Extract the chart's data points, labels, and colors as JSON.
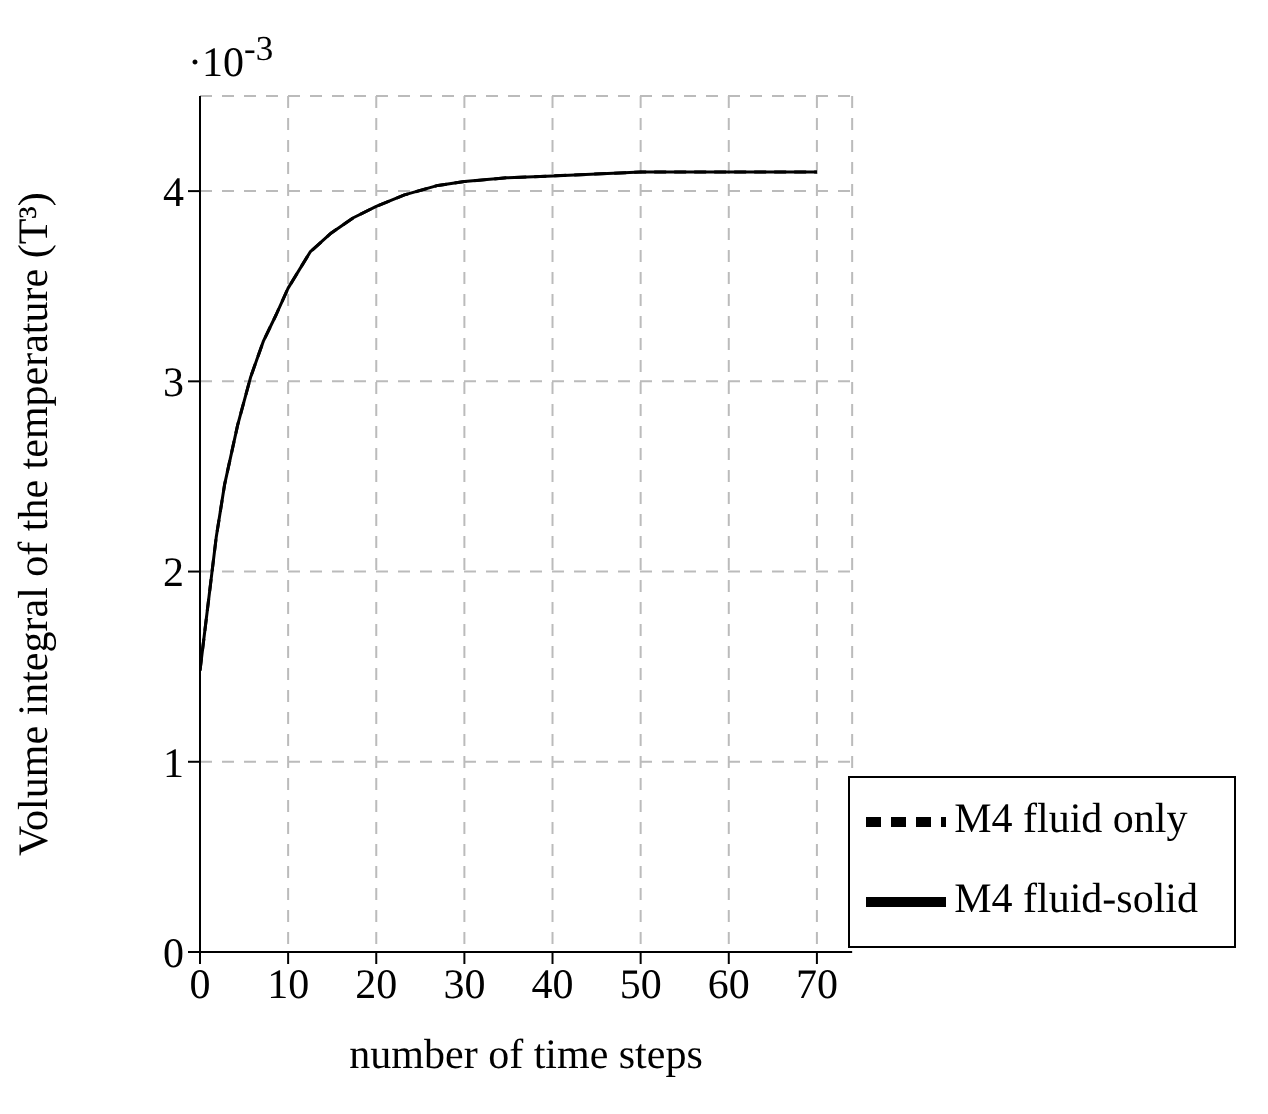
{
  "chart_data": {
    "type": "line",
    "xlabel": "number of time steps",
    "ylabel": "Volume integral of the temperature (T³)",
    "annotations": [
      "·10$^{-3}$"
    ],
    "x": [
      0,
      1.84,
      2.8,
      4.27,
      5.73,
      7.18,
      8.64,
      10,
      12.5,
      14.9,
      17.4,
      20,
      23.2,
      27,
      30,
      34.8,
      40,
      50,
      60,
      70
    ],
    "series": [
      {
        "name": "M4 fluid only",
        "color": "#000000",
        "line_style": "dashed",
        "values": [
          1.48,
          2.18,
          2.46,
          2.77,
          3.02,
          3.21,
          3.35,
          3.49,
          3.68,
          3.78,
          3.86,
          3.92,
          3.98,
          4.03,
          4.05,
          4.07,
          4.08,
          4.1,
          4.1,
          4.1
        ]
      },
      {
        "name": "M4 fluid-solid",
        "color": "#000000",
        "line_style": "solid",
        "values": [
          1.48,
          2.18,
          2.46,
          2.77,
          3.02,
          3.21,
          3.35,
          3.49,
          3.68,
          3.78,
          3.86,
          3.92,
          3.98,
          4.03,
          4.05,
          4.07,
          4.08,
          4.1,
          4.1,
          4.1
        ]
      }
    ],
    "xlim": [
      0,
      74
    ],
    "xticks": [
      0,
      10,
      20,
      30,
      40,
      50,
      60,
      70
    ],
    "ylim": [
      0,
      4.5
    ],
    "yticks": [
      0,
      1,
      2,
      3,
      4
    ],
    "grid": true,
    "legend": "bottom right",
    "marker": "none"
  }
}
